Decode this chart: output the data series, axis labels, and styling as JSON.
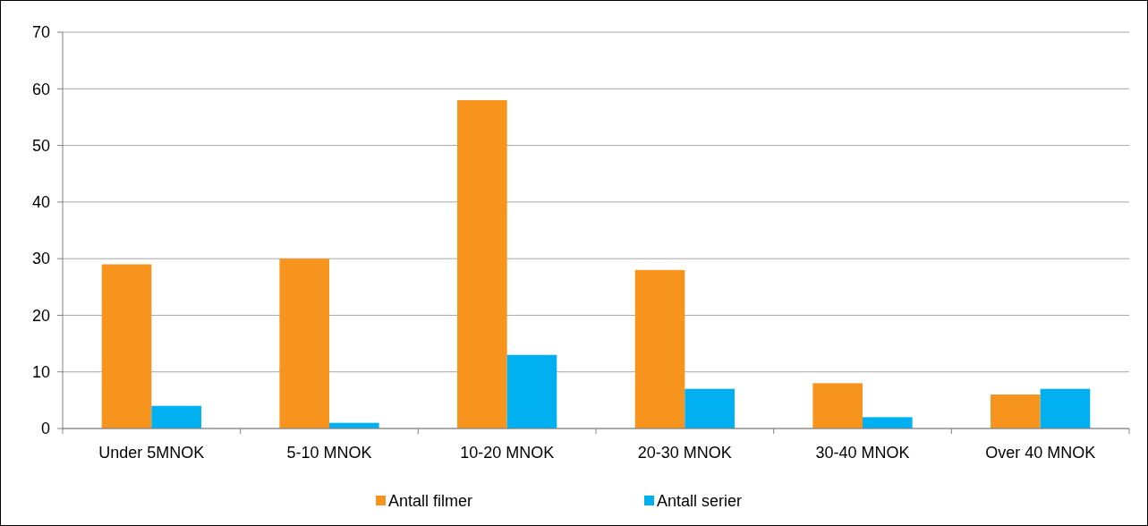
{
  "chart_data": {
    "type": "bar",
    "categories": [
      "Under 5MNOK",
      "5-10 MNOK",
      "10-20 MNOK",
      "20-30 MNOK",
      "30-40 MNOK",
      "Over 40 MNOK"
    ],
    "series": [
      {
        "name": "Antall filmer",
        "color": "#f7941d",
        "values": [
          29,
          30,
          58,
          28,
          8,
          6
        ]
      },
      {
        "name": "Antall serier",
        "color": "#00b0f0",
        "values": [
          4,
          1,
          13,
          7,
          2,
          7
        ]
      }
    ],
    "ylim": [
      0,
      70
    ],
    "yticks": [
      0,
      10,
      20,
      30,
      40,
      50,
      60,
      70
    ],
    "grid": "y",
    "legend": "bottom"
  }
}
